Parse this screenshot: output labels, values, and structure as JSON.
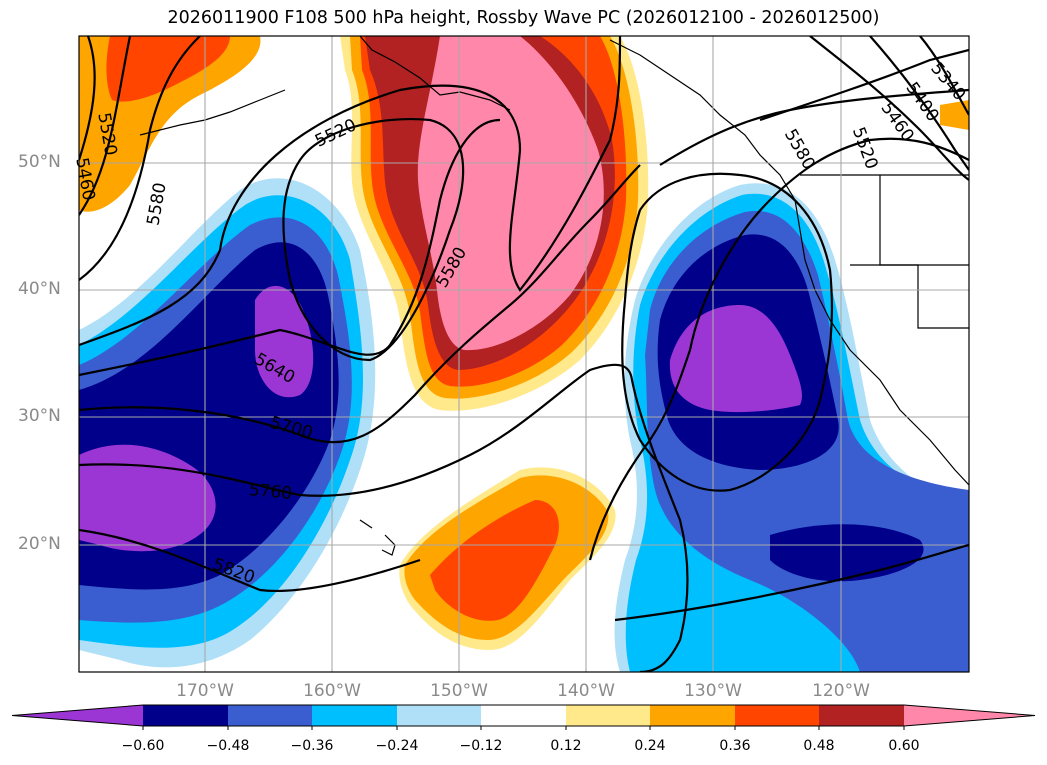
{
  "title": "2026011900 F108 500 hPa height, Rossby Wave PC (2026012100 - 2026012500)",
  "lat_labels": [
    "50°N",
    "40°N",
    "30°N",
    "20°N"
  ],
  "lon_labels": [
    "170°W",
    "160°W",
    "150°W",
    "140°W",
    "130°W",
    "120°W"
  ],
  "contour_labels": [
    "5520",
    "5460",
    "5520",
    "5580",
    "5580",
    "5640",
    "5700",
    "5760",
    "5820",
    "5580",
    "5520",
    "5460",
    "5400",
    "5340"
  ],
  "colorbar": {
    "tick_labels": [
      "−0.60",
      "−0.48",
      "−0.36",
      "−0.24",
      "−0.12",
      "0.12",
      "0.24",
      "0.36",
      "0.48",
      "0.60"
    ],
    "colors": [
      "#9b36d4",
      "#00008b",
      "#3a5ed0",
      "#00bfff",
      "#b0e0f8",
      "#ffffff",
      "#ffe98a",
      "#ffa500",
      "#ff4500",
      "#b22222",
      "#ff88aa"
    ]
  },
  "colors": {
    "purple": "#9b36d4",
    "navy": "#00008b",
    "royal": "#3a5ed0",
    "cyan": "#00bfff",
    "lightblue": "#b0e0f8",
    "yellow": "#ffe98a",
    "orange": "#ffa500",
    "redorange": "#ff4500",
    "firebrick": "#b22222",
    "pink": "#ff88aa"
  }
}
